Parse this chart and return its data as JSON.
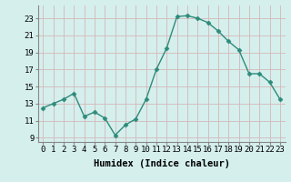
{
  "x": [
    0,
    1,
    2,
    3,
    4,
    5,
    6,
    7,
    8,
    9,
    10,
    11,
    12,
    13,
    14,
    15,
    16,
    17,
    18,
    19,
    20,
    21,
    22,
    23
  ],
  "y": [
    12.5,
    13.0,
    13.5,
    14.2,
    11.5,
    12.0,
    11.3,
    9.3,
    10.5,
    11.2,
    13.5,
    17.0,
    19.5,
    23.2,
    23.3,
    23.0,
    22.5,
    21.5,
    20.3,
    19.3,
    16.5,
    16.5,
    15.5,
    13.5
  ],
  "line_color": "#2e8b7a",
  "marker": "D",
  "markersize": 2.5,
  "linewidth": 1.0,
  "bg_color": "#d5efed",
  "grid_color": "#c8dede",
  "xlabel": "Humidex (Indice chaleur)",
  "xlim": [
    -0.5,
    23.5
  ],
  "ylim": [
    8.5,
    24.5
  ],
  "yticks": [
    9,
    11,
    13,
    15,
    17,
    19,
    21,
    23
  ],
  "xticks": [
    0,
    1,
    2,
    3,
    4,
    5,
    6,
    7,
    8,
    9,
    10,
    11,
    12,
    13,
    14,
    15,
    16,
    17,
    18,
    19,
    20,
    21,
    22,
    23
  ],
  "xlabel_fontsize": 7.5,
  "tick_fontsize": 6.5
}
